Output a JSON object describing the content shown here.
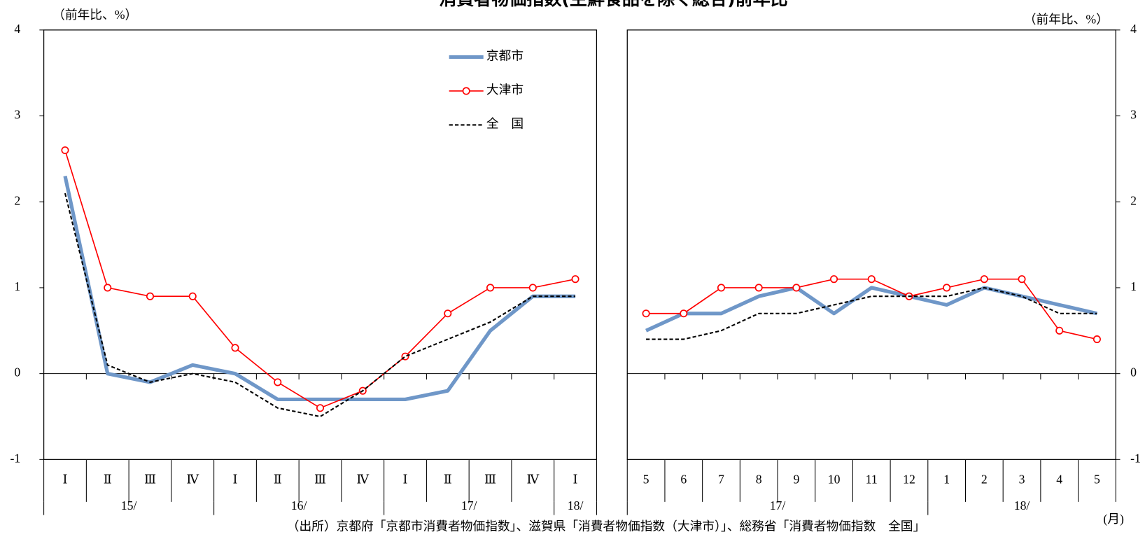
{
  "title": "消費者物価指数(生鮮食品を除く総合)前年比",
  "source": "（出所）京都府「京都市消費者物価指数」、滋賀県「消費者物価指数（大津市）」、総務省「消費者物価指数　全国」",
  "x_unit": "(月)",
  "chart_data": [
    {
      "type": "line",
      "y_label": "（前年比、%）",
      "ylim": [
        -1,
        4
      ],
      "yticks": [
        4,
        3,
        2,
        1,
        0,
        -1
      ],
      "legend": "upper right",
      "categories": [
        "Ⅰ",
        "Ⅱ",
        "Ⅲ",
        "Ⅳ",
        "Ⅰ",
        "Ⅱ",
        "Ⅲ",
        "Ⅳ",
        "Ⅰ",
        "Ⅱ",
        "Ⅲ",
        "Ⅳ",
        "Ⅰ"
      ],
      "year_labels": [
        "15/",
        null,
        null,
        null,
        "16/",
        null,
        null,
        null,
        "17/",
        null,
        null,
        null,
        "18/"
      ],
      "series": [
        {
          "name": "京都市",
          "color": "#6f97c8",
          "style": "thick",
          "values": [
            2.3,
            0.0,
            -0.1,
            0.1,
            0.0,
            -0.3,
            -0.3,
            -0.3,
            -0.3,
            -0.2,
            0.5,
            0.9,
            0.9
          ]
        },
        {
          "name": "大津市",
          "color": "#ff0000",
          "style": "marker",
          "values": [
            2.6,
            1.0,
            0.9,
            0.9,
            0.3,
            -0.1,
            -0.4,
            -0.2,
            0.2,
            0.7,
            1.0,
            1.0,
            1.1
          ]
        },
        {
          "name": "全　国",
          "color": "#000000",
          "style": "dashed",
          "values": [
            2.1,
            0.1,
            -0.1,
            0.0,
            -0.1,
            -0.4,
            -0.5,
            -0.2,
            0.2,
            0.4,
            0.6,
            0.9,
            0.9
          ]
        }
      ]
    },
    {
      "type": "line",
      "y_label": "（前年比、%）",
      "ylim": [
        -1,
        4
      ],
      "yticks": [
        4,
        3,
        2,
        1,
        0,
        -1
      ],
      "categories": [
        "5",
        "6",
        "7",
        "8",
        "9",
        "10",
        "11",
        "12",
        "1",
        "2",
        "3",
        "4",
        "5"
      ],
      "year_labels": [
        "17/",
        null,
        null,
        null,
        null,
        null,
        null,
        null,
        "18/",
        null,
        null,
        null,
        null
      ],
      "series": [
        {
          "color": "#6f97c8",
          "style": "thick",
          "values": [
            0.5,
            0.7,
            0.7,
            0.9,
            1.0,
            0.7,
            1.0,
            0.9,
            0.8,
            1.0,
            0.9,
            0.8,
            0.7
          ]
        },
        {
          "color": "#ff0000",
          "style": "marker",
          "values": [
            0.7,
            0.7,
            1.0,
            1.0,
            1.0,
            1.1,
            1.1,
            0.9,
            1.0,
            1.1,
            1.1,
            0.5,
            0.4
          ]
        },
        {
          "color": "#000000",
          "style": "dashed",
          "values": [
            0.4,
            0.4,
            0.5,
            0.7,
            0.7,
            0.8,
            0.9,
            0.9,
            0.9,
            1.0,
            0.9,
            0.7,
            0.7
          ]
        }
      ]
    }
  ]
}
